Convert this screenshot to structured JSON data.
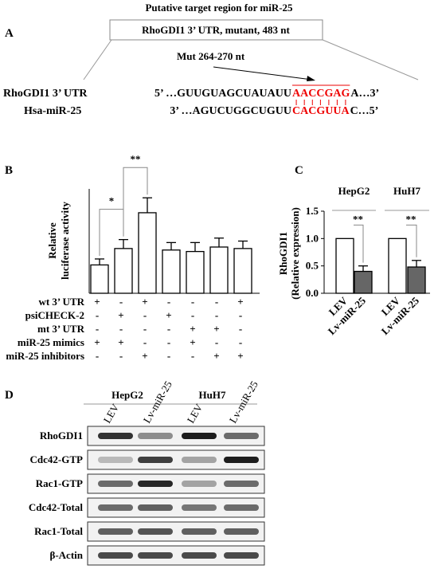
{
  "panel_a": {
    "label": "A",
    "title": "Putative target region for miR-25",
    "box": "RhoGDI1 3’ UTR, mutant, 483 nt",
    "mutation": "Mut  264-270 nt",
    "seq1": {
      "name": "RhoGDI1 3’ UTR",
      "prefix": "5’ …GUUGUAGCUAUAUU",
      "site": "AACCGAG",
      "suffix": "A…3’"
    },
    "seq2": {
      "name": "Hsa-miR-25",
      "prefix": "3’ …AGUCUGGCUGUU",
      "site": "CACGUUA",
      "suffix": "C…5’"
    }
  },
  "chart_data": [
    {
      "type": "bar",
      "label": "B",
      "ylabel": [
        "Relative",
        "luciferase activity"
      ],
      "values": [
        0.95,
        1.5,
        2.7,
        1.45,
        1.4,
        1.55,
        1.5
      ],
      "errors": [
        0.2,
        0.3,
        0.5,
        0.25,
        0.3,
        0.3,
        0.25
      ],
      "color": "#ffffff",
      "ylim": [
        0,
        3.5
      ],
      "annotations": [
        {
          "text": "*",
          "from": 0,
          "to": 1
        },
        {
          "text": "**",
          "from": 1,
          "to": 2
        }
      ],
      "conditions": [
        {
          "name": "wt 3’ UTR",
          "signs": [
            "+",
            "-",
            "+",
            "-",
            "-",
            "-",
            "+"
          ]
        },
        {
          "name": "psiCHECK-2",
          "signs": [
            "-",
            "+",
            "-",
            "+",
            "-",
            "-",
            "-"
          ]
        },
        {
          "name": "mt 3’ UTR",
          "signs": [
            "-",
            "-",
            "-",
            "-",
            "+",
            "+",
            "-"
          ]
        },
        {
          "name": "miR-25 mimics",
          "signs": [
            "+",
            "+",
            "-",
            "-",
            "+",
            "-",
            "-"
          ]
        },
        {
          "name": "miR-25 inhibitors",
          "signs": [
            "-",
            "-",
            "+",
            "-",
            "-",
            "+",
            "+"
          ]
        }
      ]
    },
    {
      "type": "bar",
      "label": "C",
      "ylabel": [
        "RhoGDI1",
        "(Relative expression)"
      ],
      "groups": [
        "HepG2",
        "HuH7"
      ],
      "categories": [
        "LEV",
        "Lv-miR-25",
        "LEV",
        "Lv-miR-25"
      ],
      "values": [
        1.0,
        0.4,
        1.0,
        0.48
      ],
      "errors": [
        0,
        0.1,
        0,
        0.12
      ],
      "colors": [
        "#ffffff",
        "#666666",
        "#ffffff",
        "#666666"
      ],
      "ylim": [
        0,
        1.5
      ],
      "yticks": [
        {
          "value": 0,
          "label": "0.0"
        },
        {
          "value": 0.5,
          "label": "0.5"
        },
        {
          "value": 1,
          "label": "1.0"
        },
        {
          "value": 1.5,
          "label": "1.5"
        }
      ],
      "annotations": [
        {
          "text": "**",
          "from": 0,
          "to": 1
        },
        {
          "text": "**",
          "from": 2,
          "to": 3
        }
      ]
    }
  ],
  "panel_d": {
    "label": "D",
    "groups": [
      "HepG2",
      "HuH7"
    ],
    "lanes": [
      "LEV",
      "Lv-miR-25",
      "LEV",
      "Lv-miR-25"
    ],
    "rows": [
      "RhoGDI1",
      "Cdc42-GTP",
      "Rac1-GTP",
      "Cdc42-Total",
      "Rac1-Total",
      "β-Actin"
    ]
  }
}
